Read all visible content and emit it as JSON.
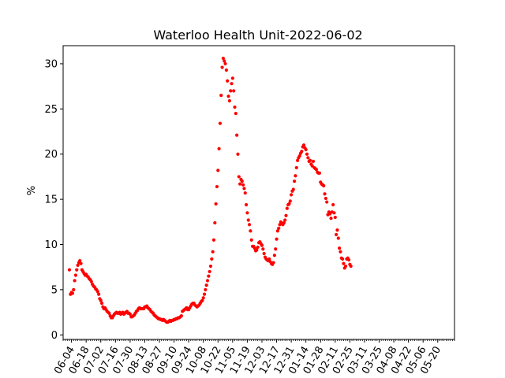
{
  "chart_data": {
    "type": "scatter",
    "title": "Waterloo Health Unit-2022-06-02",
    "xlabel": "",
    "ylabel": "%",
    "ylim": [
      -0.5,
      32
    ],
    "yticks": [
      0,
      5,
      10,
      15,
      20,
      25,
      30
    ],
    "xlim": [
      "2021-05-27",
      "2022-06-05"
    ],
    "xtick_labels": [
      "06-04",
      "06-18",
      "07-02",
      "07-16",
      "07-30",
      "08-13",
      "08-27",
      "09-10",
      "09-24",
      "10-08",
      "10-22",
      "11-05",
      "11-19",
      "12-03",
      "12-17",
      "12-31",
      "01-14",
      "01-28",
      "02-11",
      "02-25",
      "03-11",
      "03-25",
      "04-08",
      "04-22",
      "05-06",
      "05-20"
    ],
    "grid": false,
    "legend": "none",
    "marker_color": "#ff0000",
    "series": [
      {
        "start_date": "2021-06-02",
        "step_days": 1,
        "values": [
          7.2,
          4.5,
          4.7,
          4.6,
          5.0,
          6.0,
          6.6,
          7.2,
          7.7,
          8.0,
          8.2,
          7.9,
          7.2,
          7.0,
          6.8,
          6.6,
          6.7,
          6.5,
          6.4,
          6.2,
          6.1,
          5.9,
          5.6,
          5.4,
          5.3,
          5.1,
          5.0,
          4.8,
          4.5,
          4.0,
          3.8,
          3.5,
          3.1,
          2.9,
          3.0,
          2.8,
          2.6,
          2.5,
          2.4,
          2.1,
          1.9,
          1.9,
          2.1,
          2.3,
          2.4,
          2.5,
          2.4,
          2.4,
          2.5,
          2.3,
          2.4,
          2.5,
          2.3,
          2.4,
          2.5,
          2.6,
          2.4,
          2.4,
          2.3,
          2.0,
          2.0,
          2.1,
          2.2,
          2.4,
          2.6,
          2.7,
          2.9,
          3.0,
          2.9,
          2.9,
          2.9,
          2.9,
          3.1,
          3.1,
          3.2,
          3.0,
          2.9,
          2.8,
          2.6,
          2.5,
          2.4,
          2.2,
          2.1,
          2.0,
          1.9,
          1.8,
          1.8,
          1.7,
          1.7,
          1.6,
          1.7,
          1.6,
          1.5,
          1.4,
          1.4,
          1.5,
          1.6,
          1.5,
          1.6,
          1.6,
          1.7,
          1.7,
          1.8,
          1.8,
          1.9,
          1.9,
          2.0,
          2.1,
          2.6,
          2.7,
          2.8,
          2.9,
          3.0,
          2.8,
          2.8,
          3.0,
          3.2,
          3.4,
          3.5,
          3.5,
          3.3,
          3.2,
          3.1,
          3.2,
          3.3,
          3.5,
          3.7,
          3.8,
          4.1,
          4.5,
          5.0,
          5.5,
          6.0,
          6.5,
          7.0,
          7.6,
          8.4,
          9.2,
          10.5,
          12.4,
          14.5,
          16.4,
          18.2,
          20.6,
          23.4,
          26.5,
          29.6,
          30.6,
          30.3,
          30.0,
          29.3,
          28.1,
          26.4,
          25.9,
          27.0,
          27.8,
          28.4,
          27.0,
          25.2,
          24.5,
          22.1,
          20.0,
          17.5,
          16.7,
          17.2,
          17.0,
          16.6,
          16.2,
          15.7,
          14.4,
          13.5,
          12.7,
          12.2,
          11.5,
          10.5,
          9.8,
          9.8,
          9.6,
          9.3,
          9.4,
          9.7,
          10.2,
          10.3,
          10.1,
          9.9,
          9.5,
          9.0,
          8.6,
          8.4,
          8.3,
          8.2,
          8.4,
          8.1,
          7.9,
          7.8,
          8.0,
          8.8,
          9.5,
          10.6,
          11.5,
          11.8,
          12.2,
          12.5,
          12.3,
          12.2,
          12.4,
          12.7,
          13.2,
          14.0,
          14.4,
          14.5,
          14.8,
          15.5,
          15.9,
          16.1,
          17.0,
          17.6,
          18.5,
          19.3,
          19.6,
          19.8,
          20.1,
          20.3,
          20.8,
          21.0,
          20.7,
          20.5,
          20.0,
          19.6,
          19.2,
          19.3,
          18.9,
          18.7,
          19.2,
          18.5,
          18.4,
          18.3,
          18.0,
          17.9,
          17.9,
          16.9,
          16.7,
          16.6,
          16.5,
          15.6,
          15.1,
          14.7,
          13.3,
          13.6,
          13.4,
          12.9,
          13.6,
          14.4,
          13.5,
          13.0,
          11.1,
          11.6,
          10.7,
          9.6,
          9.2,
          8.5,
          8.4,
          7.9,
          7.4,
          7.6,
          8.4,
          8.5,
          8.3,
          7.8,
          7.6
        ]
      }
    ]
  }
}
